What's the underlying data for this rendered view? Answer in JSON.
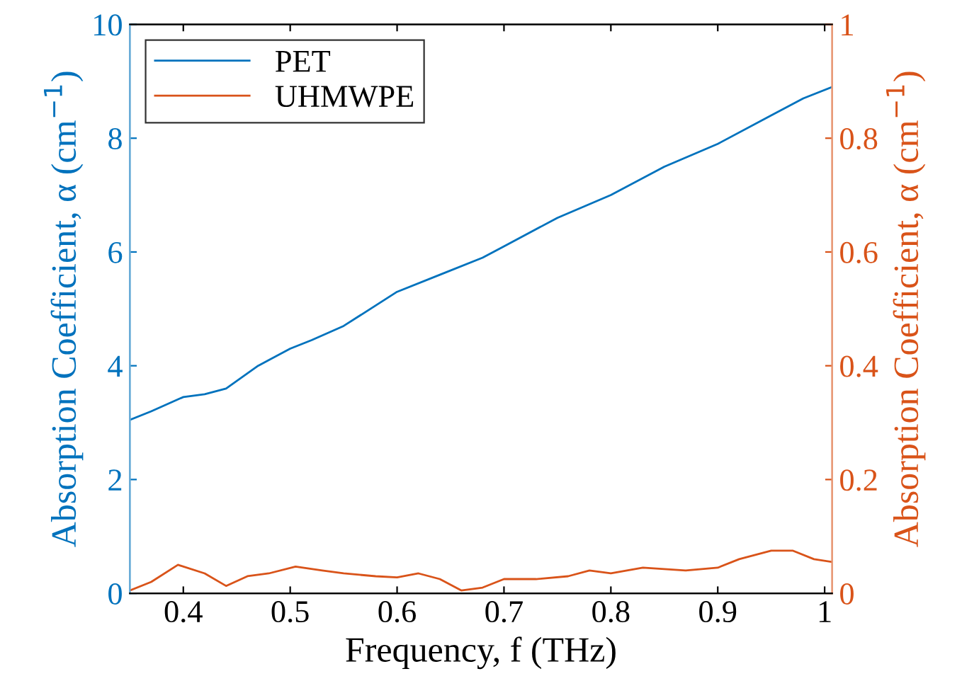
{
  "chart_data": {
    "type": "line",
    "xlabel": "Frequency, f (THz)",
    "ylabel": "Absorption Coefficient, α (cm$^{−1}$)",
    "y2label": "Absorption Coefficient, α (cm$^{−1}$)",
    "xlim": [
      0.35,
      1.007
    ],
    "xticks": [
      0.4,
      0.5,
      0.6,
      0.7,
      0.8,
      0.9,
      1
    ],
    "ylim": [
      0,
      10
    ],
    "yticks": [
      0,
      2,
      4,
      6,
      8,
      10
    ],
    "y2lim": [
      0,
      1
    ],
    "y2ticks": [
      0,
      0.2,
      0.4,
      0.6,
      0.8,
      1
    ],
    "grid": false,
    "legend": "top left",
    "line_style": "solid",
    "marker": "none",
    "series": [
      {
        "name": "PET",
        "color": "#0072bd",
        "x": [
          0.35,
          0.37,
          0.4,
          0.42,
          0.44,
          0.47,
          0.5,
          0.52,
          0.55,
          0.6,
          0.64,
          0.68,
          0.7,
          0.75,
          0.8,
          0.85,
          0.9,
          0.95,
          0.98,
          1.007
        ],
        "values": [
          3.05,
          3.2,
          3.45,
          3.5,
          3.6,
          4.0,
          4.3,
          4.45,
          4.7,
          5.3,
          5.6,
          5.9,
          6.1,
          6.6,
          7.0,
          7.5,
          7.9,
          8.4,
          8.7,
          8.9
        ]
      },
      {
        "name": "UHMWPE",
        "color": "#d95319",
        "axis": "y2",
        "x": [
          0.35,
          0.37,
          0.395,
          0.42,
          0.44,
          0.46,
          0.48,
          0.505,
          0.53,
          0.55,
          0.58,
          0.6,
          0.62,
          0.64,
          0.66,
          0.68,
          0.7,
          0.73,
          0.76,
          0.78,
          0.8,
          0.83,
          0.87,
          0.9,
          0.92,
          0.95,
          0.97,
          0.99,
          1.007
        ],
        "values": [
          0.005,
          0.02,
          0.05,
          0.035,
          0.013,
          0.03,
          0.035,
          0.047,
          0.04,
          0.035,
          0.03,
          0.028,
          0.035,
          0.025,
          0.005,
          0.01,
          0.025,
          0.025,
          0.03,
          0.04,
          0.035,
          0.045,
          0.04,
          0.045,
          0.06,
          0.075,
          0.075,
          0.06,
          0.055
        ]
      }
    ]
  }
}
